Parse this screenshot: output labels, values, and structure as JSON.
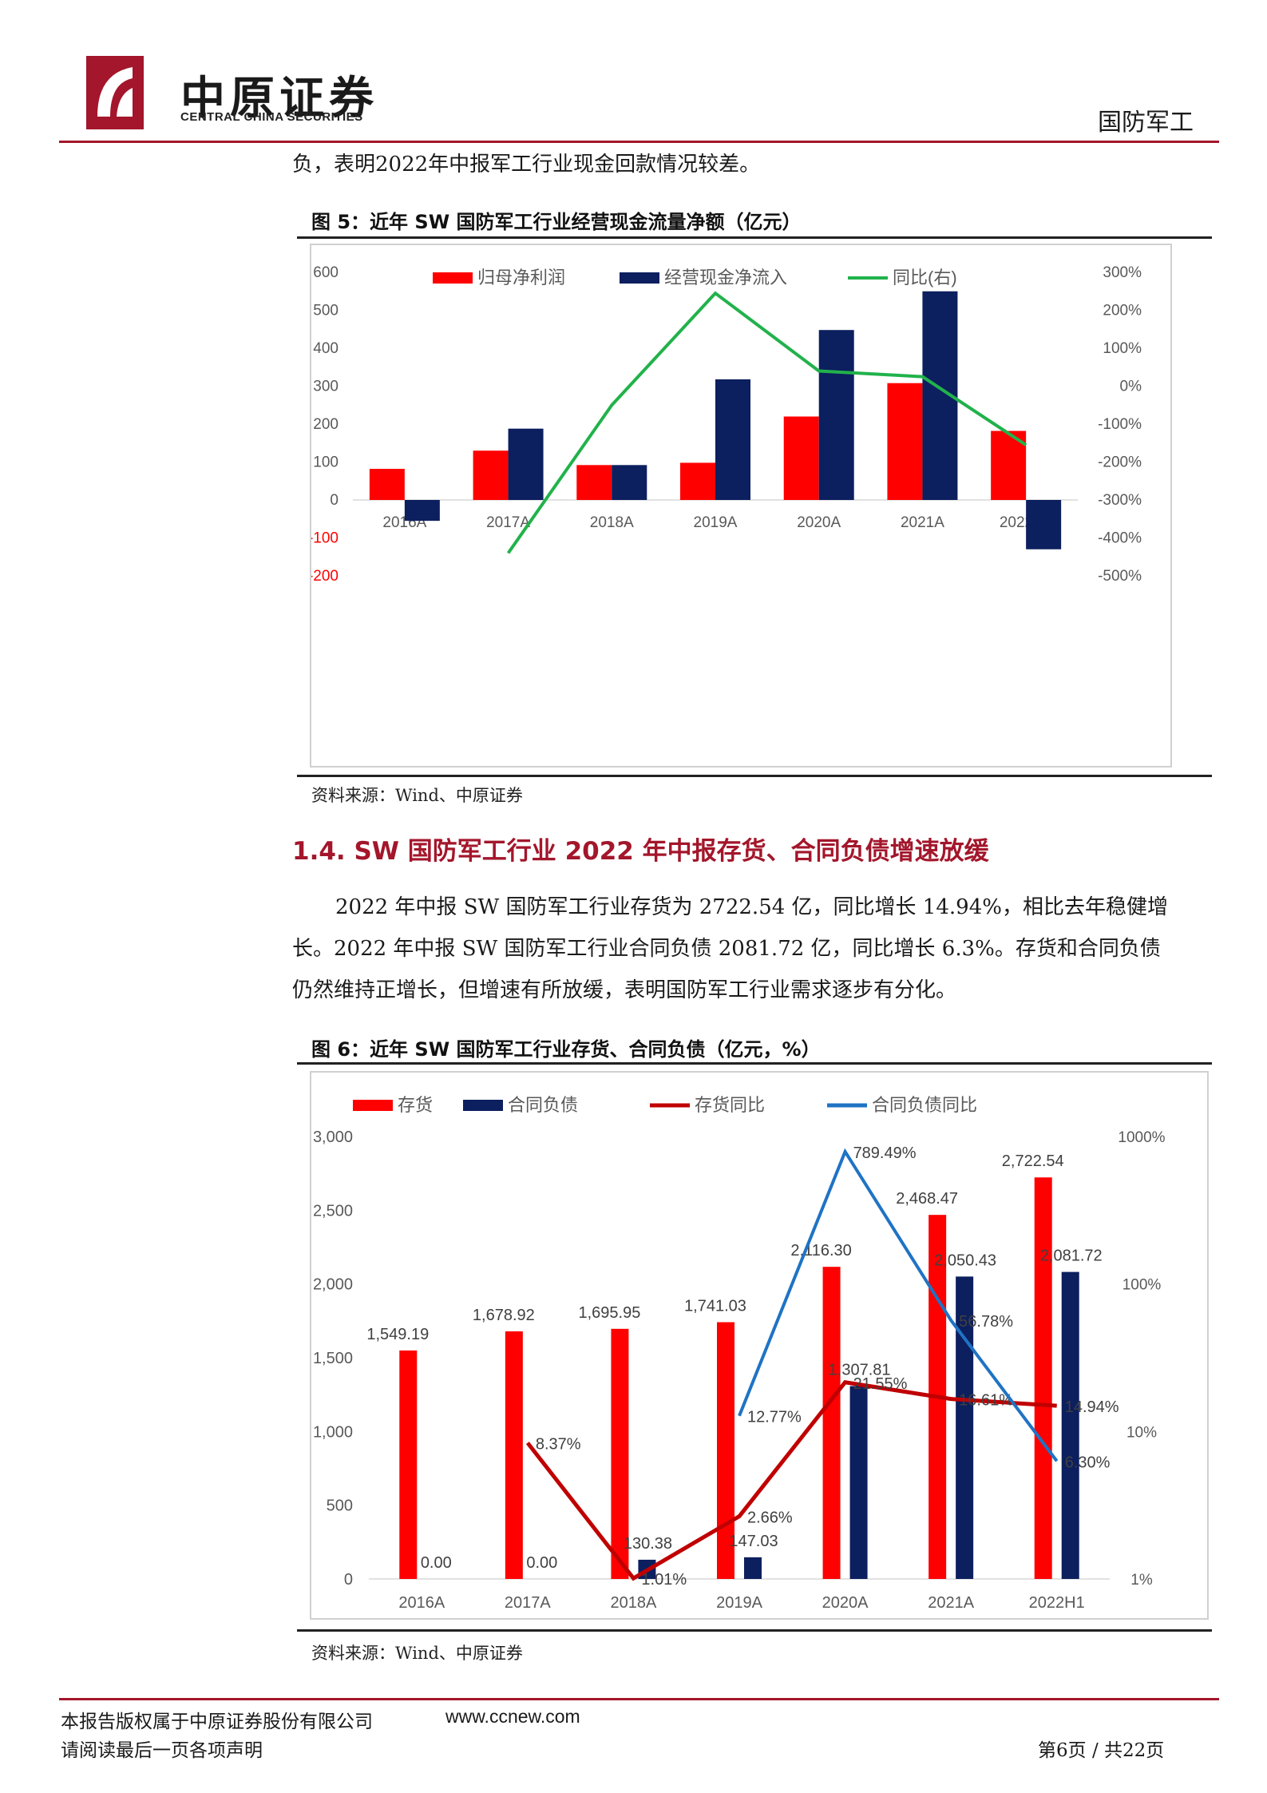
{
  "header": {
    "logo_cn": "中原证券",
    "logo_en": "CENTRAL CHINA SECURITIES",
    "category": "国防军工"
  },
  "intro_line": "负，表明2022年中报军工行业现金回款情况较差。",
  "figure5": {
    "title": "图 5：近年 SW 国防军工行业经营现金流量净额（亿元）",
    "source": "资料来源：Wind、中原证券"
  },
  "section": {
    "heading": "1.4. SW 国防军工行业 2022 年中报存货、合同负债增速放缓",
    "lines": [
      "2022 年中报 SW 国防军工行业存货为 2722.54 亿，同比增长 14.94%，相比去年稳健增",
      "长。2022 年中报 SW 国防军工行业合同负债 2081.72 亿，同比增长 6.3%。存货和合同负债",
      "仍然维持正增长，但增速有所放缓，表明国防军工行业需求逐步有分化。"
    ]
  },
  "figure6": {
    "title": "图 6：近年 SW 国防军工行业存货、合同负债（亿元，%）",
    "source": "资料来源：Wind、中原证券"
  },
  "footer": {
    "copyright": "本报告版权属于中原证券股份有限公司",
    "url": "www.ccnew.com",
    "notice": "请阅读最后一页各项声明",
    "page": "第6页 / 共22页"
  },
  "colors": {
    "brand_red": "#a3162b",
    "bar_red": "#ff0000",
    "bar_navy": "#0c1f5e",
    "line_green": "#21b24b",
    "line_darkred": "#c00000",
    "line_blue": "#1f73c4"
  },
  "chart_data": [
    {
      "type": "bar",
      "categories": [
        "2016A",
        "2017A",
        "2018A",
        "2019A",
        "2020A",
        "2021A",
        "2022H1"
      ],
      "series": [
        {
          "name": "归母净利润",
          "kind": "bar",
          "axis": "left",
          "values": [
            82,
            130,
            92,
            98,
            220,
            308,
            182
          ]
        },
        {
          "name": "经营现金净流入",
          "kind": "bar",
          "axis": "left",
          "values": [
            -55,
            188,
            92,
            318,
            448,
            550,
            -130
          ]
        },
        {
          "name": "同比(右)",
          "kind": "line",
          "axis": "right",
          "values": [
            null,
            -440,
            -50,
            245,
            40,
            25,
            -155
          ]
        }
      ],
      "ylim_left": [
        -200,
        600
      ],
      "yticks_left": [
        "600",
        "500",
        "400",
        "300",
        "200",
        "100",
        "0",
        "-100",
        "-200"
      ],
      "ylim_right": [
        -500,
        300
      ],
      "yticks_right": [
        "300%",
        "200%",
        "100%",
        "0%",
        "-100%",
        "-200%",
        "-300%",
        "-400%",
        "-500%"
      ],
      "legend": "top",
      "grid": false
    },
    {
      "type": "bar",
      "categories": [
        "2016A",
        "2017A",
        "2018A",
        "2019A",
        "2020A",
        "2021A",
        "2022H1"
      ],
      "series": [
        {
          "name": "存货",
          "kind": "bar",
          "axis": "left",
          "values": [
            1549.19,
            1678.92,
            1695.95,
            1741.03,
            2116.3,
            2468.47,
            2722.54
          ],
          "labels": [
            "1,549.19",
            "1,678.92",
            "1,695.95",
            "1,741.03",
            "2,116.30",
            "2,468.47",
            "2,722.54"
          ]
        },
        {
          "name": "合同负债",
          "kind": "bar",
          "axis": "left",
          "values": [
            0,
            0,
            130.38,
            147.03,
            1307.81,
            2050.43,
            2081.72
          ],
          "labels": [
            "0.00",
            "0.00",
            "130.38",
            "147.03",
            "1,307.81",
            "2,050.43",
            "2,081.72"
          ]
        },
        {
          "name": "存货同比",
          "kind": "line",
          "axis": "right",
          "values": [
            null,
            8.37,
            1.01,
            2.66,
            21.55,
            16.61,
            14.94
          ],
          "labels": [
            "",
            "8.37%",
            "1.01%",
            "2.66%",
            "21.55%",
            "16.61%",
            "14.94%"
          ]
        },
        {
          "name": "合同负债同比",
          "kind": "line",
          "axis": "right",
          "values": [
            null,
            null,
            null,
            12.77,
            789.49,
            56.78,
            6.3
          ],
          "labels": [
            "",
            "",
            "",
            "12.77%",
            "789.49%",
            "56.78%",
            "6.30%"
          ]
        }
      ],
      "ylim_left": [
        0,
        3000
      ],
      "yticks_left": [
        "3,000",
        "2,500",
        "2,000",
        "1,500",
        "1,000",
        "500",
        "0"
      ],
      "ylim_right": [
        1,
        1000
      ],
      "yscale_right": "log",
      "yticks_right": [
        "1000%",
        "100%",
        "10%",
        "1%"
      ],
      "legend": "top",
      "grid": false
    }
  ]
}
